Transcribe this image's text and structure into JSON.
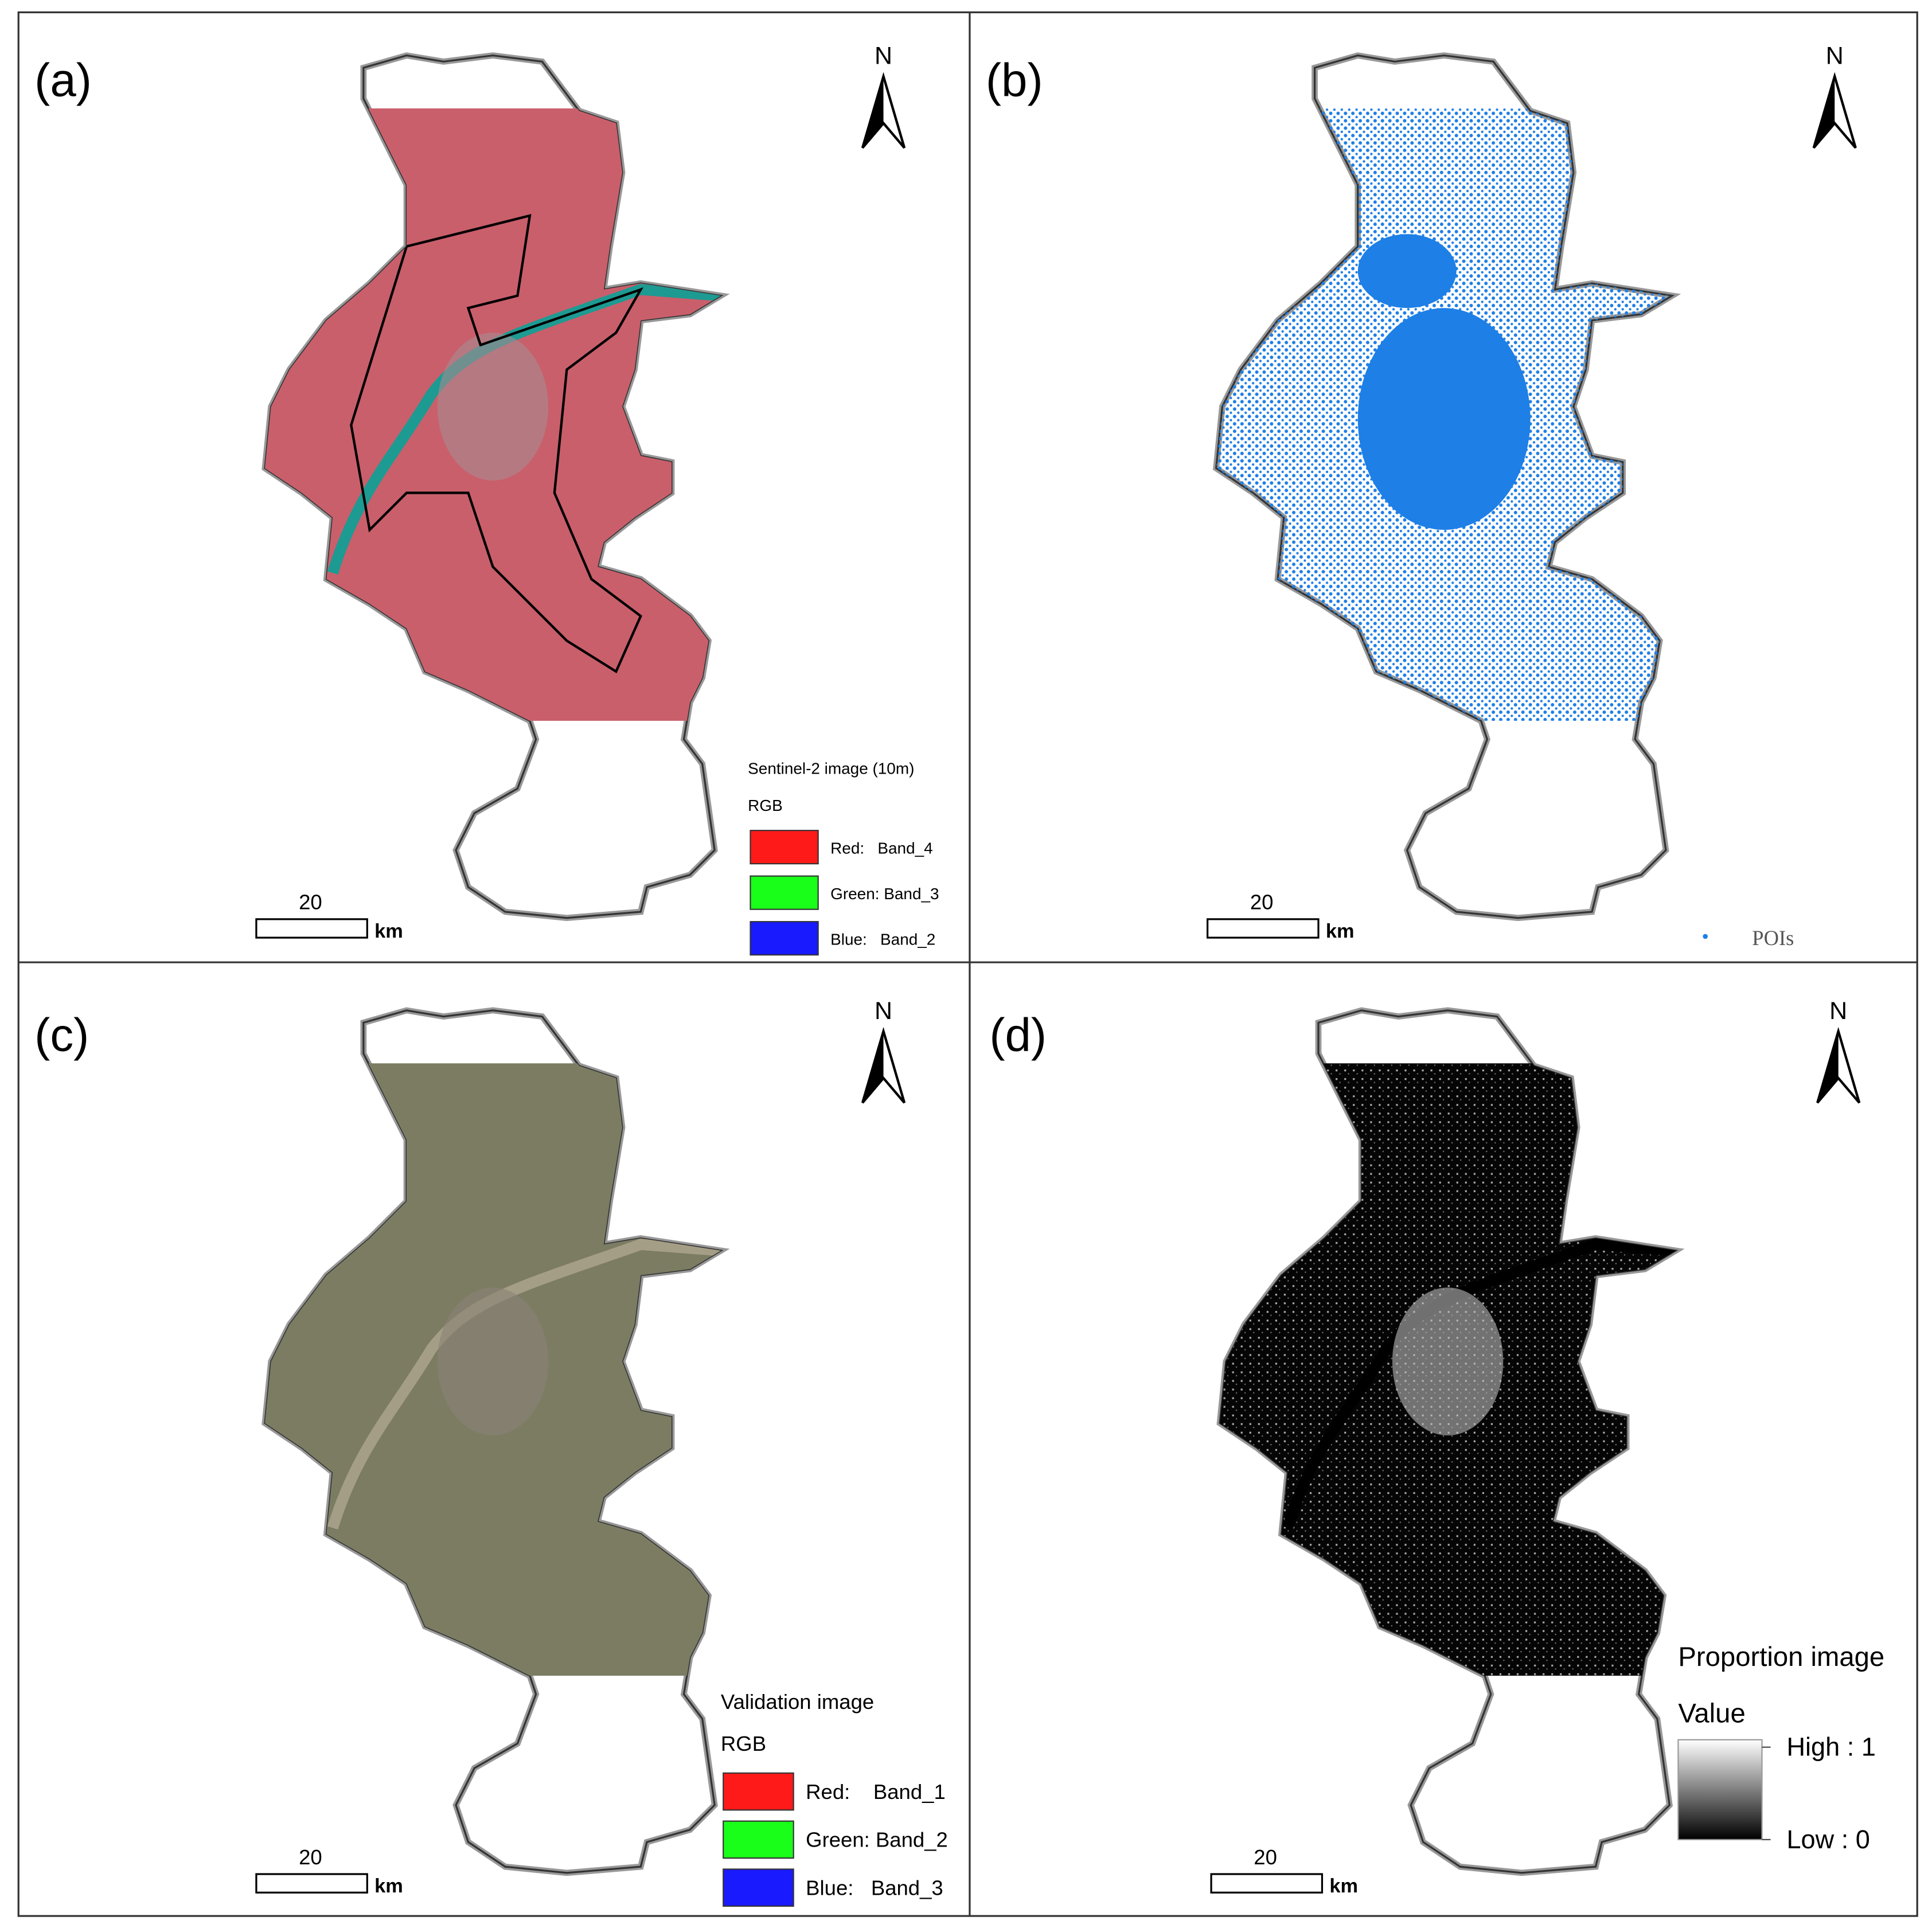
{
  "panels": [
    {
      "label": "(a)",
      "north": "N",
      "scale": {
        "value": "20",
        "unit": "km"
      },
      "fill": "#c95f6b",
      "legend": {
        "title": "Sentinel-2 image (10m)",
        "subtitle": "RGB",
        "items": [
          {
            "label": "Red:   Band_4",
            "color": "#ff1a1a"
          },
          {
            "label": "Green: Band_3",
            "color": "#1aff1a"
          },
          {
            "label": "Blue:   Band_2",
            "color": "#1a1aff"
          }
        ]
      }
    },
    {
      "label": "(b)",
      "north": "N",
      "scale": {
        "value": "20",
        "unit": "km"
      },
      "fill": "#1e7fe6",
      "legend": {
        "items": [
          {
            "label": "POIs",
            "color": "#1e7fe6"
          }
        ]
      }
    },
    {
      "label": "(c)",
      "north": "N",
      "scale": {
        "value": "20",
        "unit": "km"
      },
      "fill": "#7b7c62",
      "legend": {
        "title": "Validation image",
        "subtitle": "RGB",
        "items": [
          {
            "label": "Red:    Band_1",
            "color": "#ff1a1a"
          },
          {
            "label": "Green: Band_2",
            "color": "#1aff1a"
          },
          {
            "label": "Blue:   Band_3",
            "color": "#1a1aff"
          }
        ]
      }
    },
    {
      "label": "(d)",
      "north": "N",
      "scale": {
        "value": "20",
        "unit": "km"
      },
      "fill": "#050505",
      "legend": {
        "title": "Proportion image",
        "subtitle": "Value",
        "high": "High : 1",
        "low": "Low : 0"
      }
    }
  ]
}
